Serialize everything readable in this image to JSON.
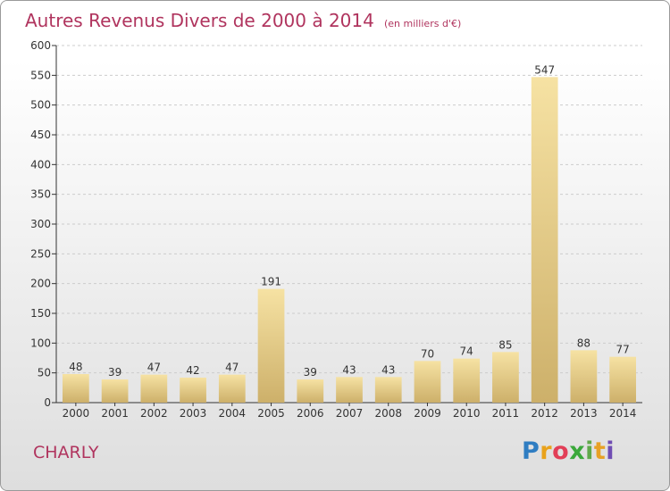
{
  "chart_data": {
    "type": "bar",
    "title": "Autres Revenus Divers de 2000 à 2014",
    "subtitle": "(en milliers d'€)",
    "categories": [
      "2000",
      "2001",
      "2002",
      "2003",
      "2004",
      "2005",
      "2006",
      "2007",
      "2008",
      "2009",
      "2010",
      "2011",
      "2012",
      "2013",
      "2014"
    ],
    "values": [
      48,
      39,
      47,
      42,
      47,
      191,
      39,
      43,
      43,
      70,
      74,
      85,
      547,
      88,
      77
    ],
    "ylim": [
      0,
      600
    ],
    "yticks": [
      0,
      50,
      100,
      150,
      200,
      250,
      300,
      350,
      400,
      450,
      500,
      550,
      600
    ],
    "grid": true,
    "xlabel": "",
    "ylabel": ""
  },
  "commune": "CHARLY",
  "logo": {
    "text": "Proxiti"
  },
  "colors": {
    "title": "#b0345e",
    "bar_light": "#f6e2a3",
    "bar_dark": "#cdb06a",
    "grid": "#cccccc",
    "axis": "#333333"
  }
}
